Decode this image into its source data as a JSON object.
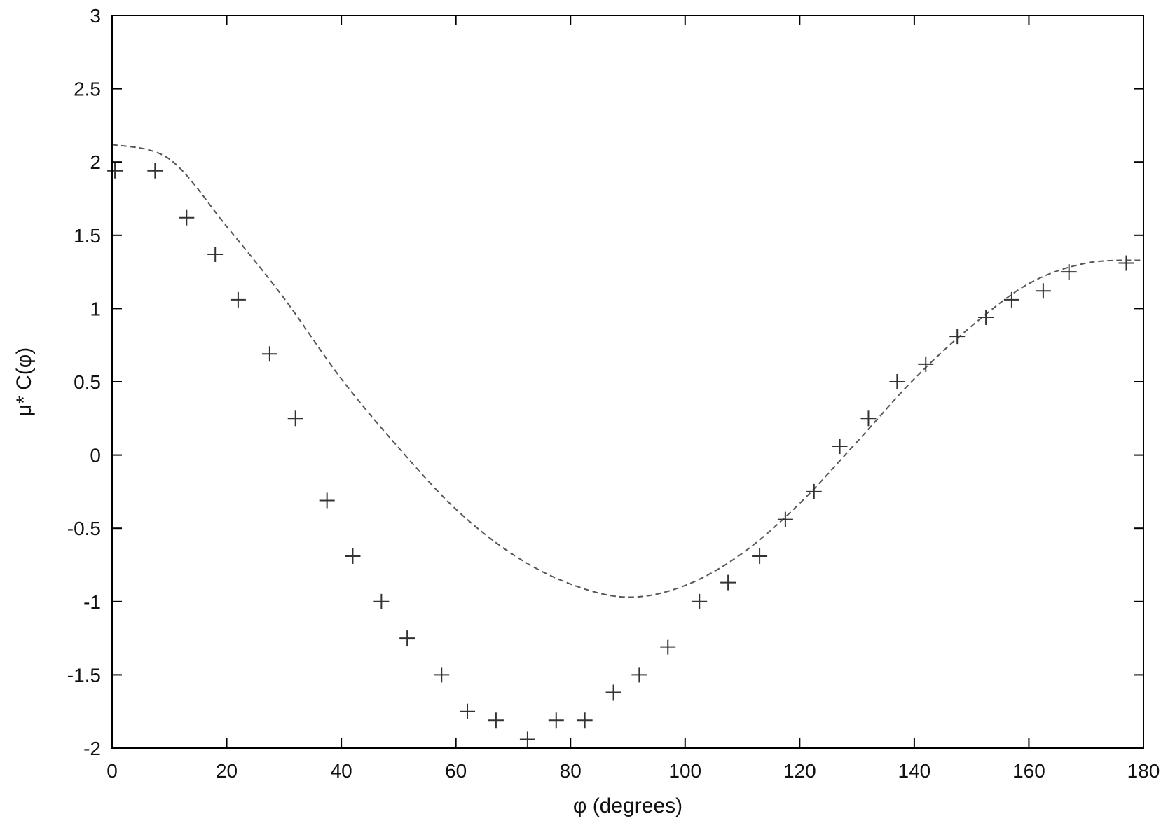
{
  "chart_data": {
    "type": "scatter",
    "xlabel": "φ (degrees)",
    "ylabel": "μ* C(φ)",
    "xlim": [
      0,
      180
    ],
    "ylim": [
      -2,
      3
    ],
    "x_ticks": [
      "0",
      "20",
      "40",
      "60",
      "80",
      "100",
      "120",
      "140",
      "160",
      "180"
    ],
    "y_ticks": [
      "-2",
      "-1.5",
      "-1",
      "-0.5",
      "0",
      "0.5",
      "1",
      "1.5",
      "2",
      "2.5",
      "3"
    ],
    "grid": false,
    "legend": "none",
    "series": [
      {
        "style": "plus-markers",
        "color": "#333333",
        "points": [
          [
            0.5,
            1.94
          ],
          [
            7.5,
            1.94
          ],
          [
            13,
            1.62
          ],
          [
            18,
            1.37
          ],
          [
            22,
            1.06
          ],
          [
            27.5,
            0.69
          ],
          [
            32,
            0.25
          ],
          [
            37.5,
            -0.31
          ],
          [
            42,
            -0.69
          ],
          [
            47,
            -1.0
          ],
          [
            51.5,
            -1.25
          ],
          [
            57.5,
            -1.5
          ],
          [
            62,
            -1.75
          ],
          [
            67,
            -1.81
          ],
          [
            72.5,
            -1.94
          ],
          [
            77.5,
            -1.81
          ],
          [
            82.5,
            -1.81
          ],
          [
            87.5,
            -1.62
          ],
          [
            92,
            -1.5
          ],
          [
            97,
            -1.31
          ],
          [
            102.5,
            -1.0
          ],
          [
            107.5,
            -0.87
          ],
          [
            113,
            -0.69
          ],
          [
            117.5,
            -0.44
          ],
          [
            122.5,
            -0.25
          ],
          [
            127,
            0.06
          ],
          [
            132,
            0.25
          ],
          [
            137,
            0.5
          ],
          [
            142,
            0.62
          ],
          [
            147.5,
            0.81
          ],
          [
            152.5,
            0.94
          ],
          [
            157,
            1.06
          ],
          [
            162.5,
            1.12
          ],
          [
            167,
            1.25
          ],
          [
            177,
            1.31
          ]
        ]
      },
      {
        "style": "dashed-line",
        "color": "#555555",
        "points": [
          [
            0,
            2.12
          ],
          [
            10,
            2.02
          ],
          [
            20,
            1.56
          ],
          [
            30,
            1.07
          ],
          [
            40,
            0.52
          ],
          [
            50,
            0.05
          ],
          [
            60,
            -0.37
          ],
          [
            70,
            -0.68
          ],
          [
            80,
            -0.88
          ],
          [
            90,
            -0.97
          ],
          [
            100,
            -0.89
          ],
          [
            110,
            -0.67
          ],
          [
            120,
            -0.33
          ],
          [
            130,
            0.09
          ],
          [
            140,
            0.52
          ],
          [
            150,
            0.88
          ],
          [
            160,
            1.17
          ],
          [
            170,
            1.31
          ],
          [
            180,
            1.33
          ]
        ]
      }
    ]
  }
}
